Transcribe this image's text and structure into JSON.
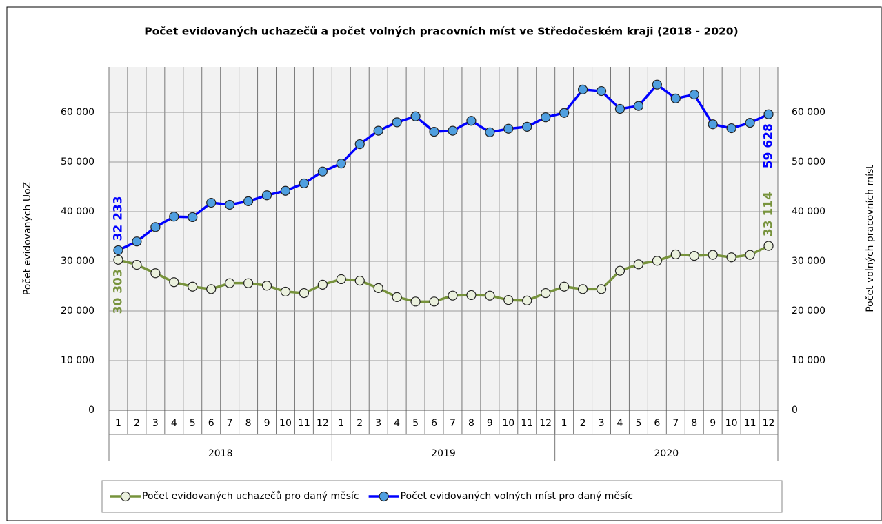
{
  "chart_data": {
    "type": "line",
    "title": "Počet evidovaných uchazečů a počet volných pracovních míst ve Středočeském kraji (2018 - 2020)",
    "ylabel": "Počet evidovaných UoZ",
    "y2label": "Počet volných pracovních míst",
    "categories": [
      "1",
      "2",
      "3",
      "4",
      "5",
      "6",
      "7",
      "8",
      "9",
      "10",
      "11",
      "12",
      "1",
      "2",
      "3",
      "4",
      "5",
      "6",
      "7",
      "8",
      "9",
      "10",
      "11",
      "12",
      "1",
      "2",
      "3",
      "4",
      "5",
      "6",
      "7",
      "8",
      "9",
      "10",
      "11",
      "12"
    ],
    "x_groups": [
      "2018",
      "2019",
      "2020"
    ],
    "ylim": [
      0,
      70000
    ],
    "yticks": [
      {
        "value": 0,
        "label": "0"
      },
      {
        "value": 10000,
        "label": "10 000"
      },
      {
        "value": 20000,
        "label": "20 000"
      },
      {
        "value": 30000,
        "label": "30 000"
      },
      {
        "value": 40000,
        "label": "40 000"
      },
      {
        "value": 50000,
        "label": "50 000"
      },
      {
        "value": 60000,
        "label": "60 000"
      }
    ],
    "y2lim": [
      0,
      70000
    ],
    "y2ticks": [
      {
        "value": 0,
        "label": "0"
      },
      {
        "value": 10000,
        "label": "10 000"
      },
      {
        "value": 20000,
        "label": "20 000"
      },
      {
        "value": 30000,
        "label": "30 000"
      },
      {
        "value": 40000,
        "label": "40 000"
      },
      {
        "value": 50000,
        "label": "50 000"
      },
      {
        "value": 60000,
        "label": "60 000"
      }
    ],
    "grid": true,
    "legend": "bottom",
    "series": [
      {
        "name": "Počet evidovaných uchazečů pro daný měsíc",
        "color": "#77933c",
        "marker_color": "#ebf1de",
        "values": [
          30303,
          29300,
          27600,
          25800,
          24900,
          24400,
          25600,
          25600,
          25100,
          23900,
          23600,
          25300,
          26400,
          26100,
          24600,
          22800,
          21900,
          21900,
          23100,
          23200,
          23100,
          22200,
          22100,
          23600,
          24900,
          24400,
          24400,
          28100,
          29400,
          30100,
          31400,
          31100,
          31300,
          30800,
          31300,
          33114
        ],
        "value_labels": [
          "30 303",
          null,
          null,
          null,
          null,
          null,
          null,
          null,
          null,
          null,
          null,
          null,
          null,
          null,
          null,
          null,
          null,
          null,
          null,
          null,
          null,
          null,
          null,
          null,
          null,
          null,
          null,
          null,
          null,
          null,
          null,
          null,
          null,
          null,
          null,
          "33 114"
        ]
      },
      {
        "name": "Počet evidovaných volných míst pro daný měsíc",
        "color": "#0000ff",
        "marker_color": "#4f9fe0",
        "axis": "y2",
        "values": [
          32233,
          34000,
          36900,
          39000,
          38900,
          41800,
          41400,
          42100,
          43300,
          44200,
          45700,
          48100,
          49700,
          53600,
          56300,
          58000,
          59200,
          56100,
          56300,
          58300,
          56000,
          56700,
          57100,
          59000,
          59900,
          64600,
          64300,
          60700,
          61300,
          65600,
          62800,
          63600,
          57600,
          56800,
          57900,
          59628
        ],
        "value_labels": [
          "32 233",
          null,
          null,
          null,
          null,
          null,
          null,
          null,
          null,
          null,
          null,
          null,
          null,
          null,
          null,
          null,
          null,
          null,
          null,
          null,
          null,
          null,
          null,
          null,
          null,
          null,
          null,
          null,
          null,
          null,
          null,
          null,
          null,
          null,
          null,
          "59 628"
        ]
      }
    ]
  }
}
